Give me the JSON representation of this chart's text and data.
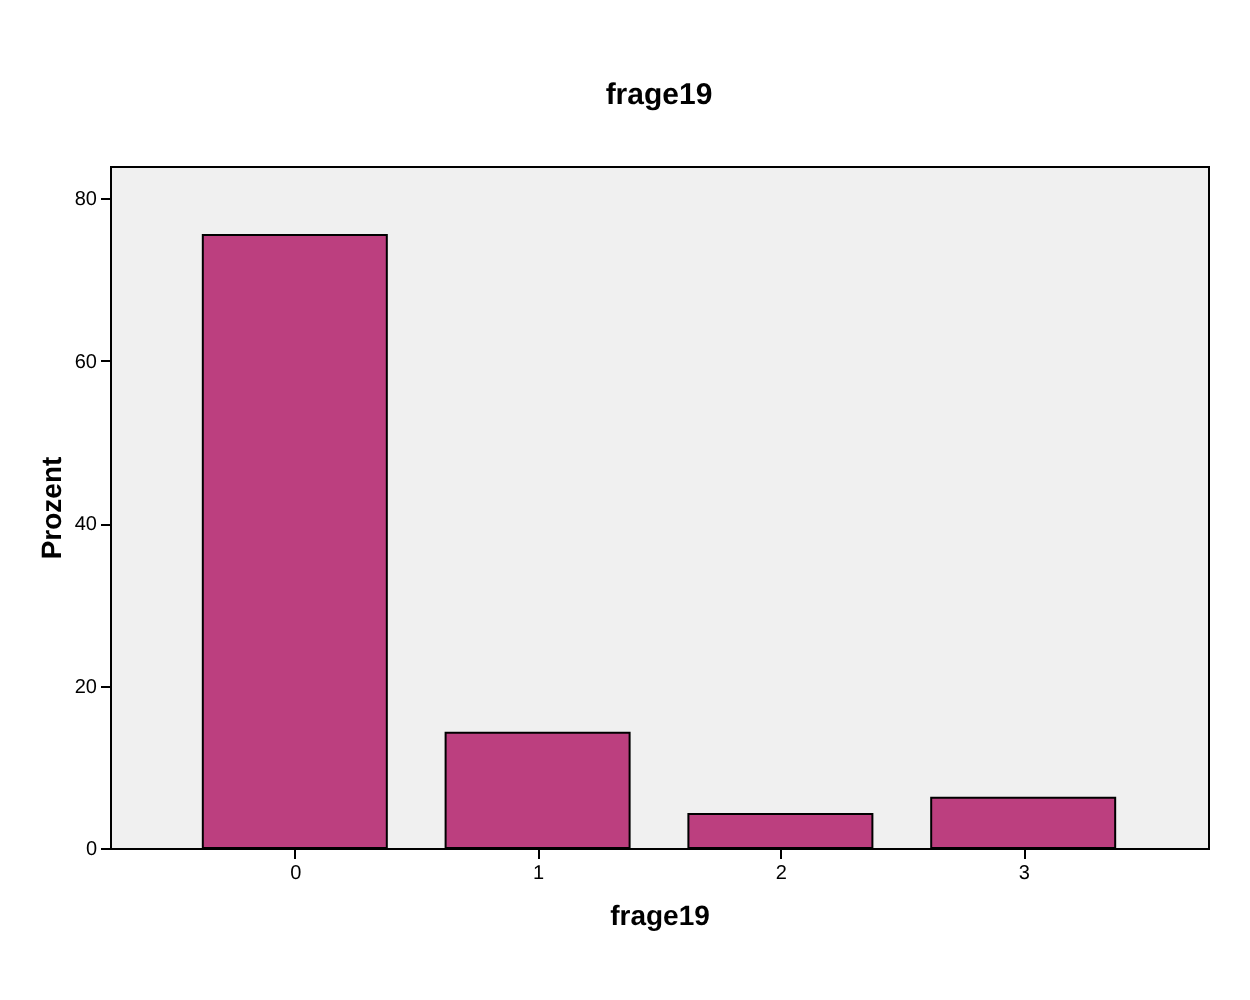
{
  "chart_data": {
    "type": "bar",
    "title": "frage19",
    "xlabel": "frage19",
    "ylabel": "Prozent",
    "categories": [
      "0",
      "1",
      "2",
      "3"
    ],
    "values": [
      75.5,
      14.2,
      4.2,
      6.2
    ],
    "color": "#bc3f7f",
    "ylim": [
      0,
      84
    ],
    "yticks": [
      0,
      20,
      40,
      60,
      80
    ],
    "grid": false
  }
}
